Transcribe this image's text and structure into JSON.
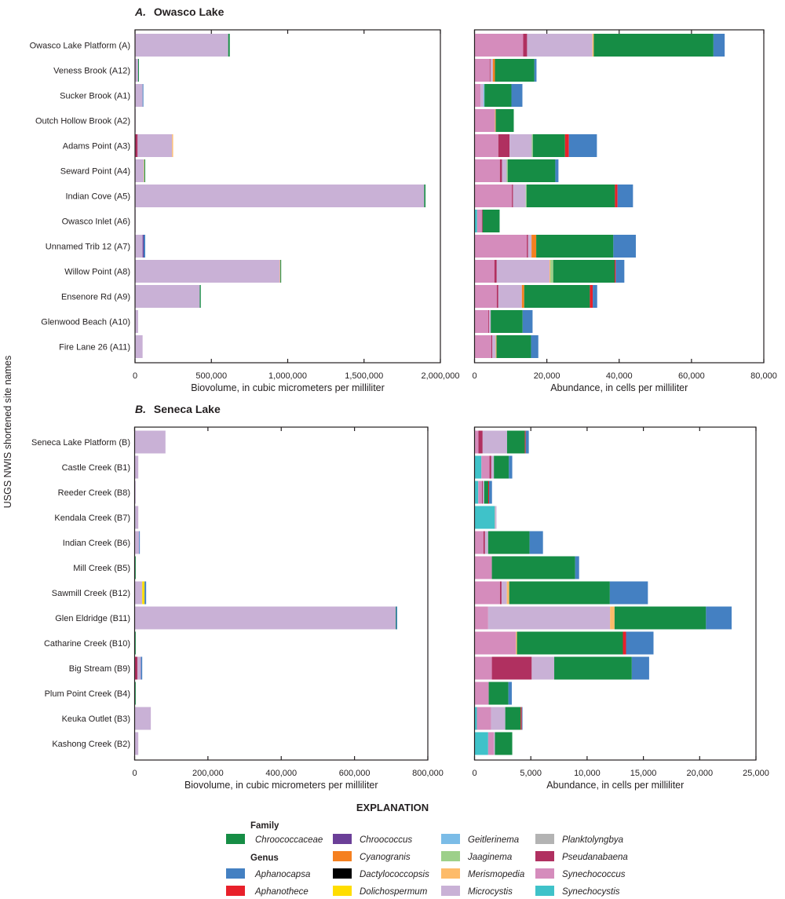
{
  "figure": {
    "y_axis_title": "USGS NWIS shortened site names",
    "panel_a": {
      "letter": "A.",
      "title": "Owasco Lake"
    },
    "panel_b": {
      "letter": "B.",
      "title": "Seneca Lake"
    }
  },
  "legend": {
    "title": "EXPLANATION",
    "family_heading": "Family",
    "genus_heading": "Genus",
    "items": [
      {
        "label": "Chroococcaceae",
        "color": "#168d45",
        "kind": "family"
      },
      {
        "label": "Aphanocapsa",
        "color": "#4480c2",
        "kind": "genus"
      },
      {
        "label": "Aphanothece",
        "color": "#e8202a",
        "kind": "genus"
      },
      {
        "label": "Chroococcus",
        "color": "#6b3f98",
        "kind": "genus"
      },
      {
        "label": "Cyanogranis",
        "color": "#f58020",
        "kind": "genus"
      },
      {
        "label": "Dactylococcopsis",
        "color": "#000000",
        "kind": "genus"
      },
      {
        "label": "Dolichospermum",
        "color": "#ffdd00",
        "kind": "genus"
      },
      {
        "label": "Geitlerinema",
        "color": "#7bbce7",
        "kind": "genus"
      },
      {
        "label": "Jaaginema",
        "color": "#9dd08a",
        "kind": "genus"
      },
      {
        "label": "Merismopedia",
        "color": "#fdbb6a",
        "kind": "genus"
      },
      {
        "label": "Microcystis",
        "color": "#c9b1d6",
        "kind": "genus"
      },
      {
        "label": "Planktolyngbya",
        "color": "#b3b3b3",
        "kind": "genus"
      },
      {
        "label": "Pseudanabaena",
        "color": "#b03060",
        "kind": "genus"
      },
      {
        "label": "Synechococcus",
        "color": "#d58cbc",
        "kind": "genus"
      },
      {
        "label": "Synechocystis",
        "color": "#3fc2c9",
        "kind": "genus"
      }
    ]
  },
  "chart_data": [
    {
      "type": "bar",
      "orientation": "horizontal",
      "stacked": true,
      "panel": "A",
      "xlabel": "Biovolume, in cubic micrometers per milliliter",
      "xlim": [
        0,
        2000000
      ],
      "xtick_labels": [
        "0",
        "500,000",
        "1,000,000",
        "1,500,000",
        "2,000,000"
      ],
      "xticks": [
        0,
        500000,
        1000000,
        1500000,
        2000000
      ],
      "categories": [
        "Owasco Lake Platform (A)",
        "Veness Brook (A12)",
        "Sucker Brook (A1)",
        "Outch Hollow Brook (A2)",
        "Adams Point (A3)",
        "Seward Point (A4)",
        "Indian Cove (A5)",
        "Owasco Inlet (A6)",
        "Unnamed Trib 12 (A7)",
        "Willow Point (A8)",
        "Ensenore Rd (A9)",
        "Glenwood Beach (A10)",
        "Fire Lane 26 (A11)"
      ],
      "values": [
        {
          "Synechococcus": 3400,
          "Microcystis": 606900,
          "Chroococcaceae": 10260
        },
        {
          "Microcystis": 20500,
          "Chroococcaceae": 5100
        },
        {
          "Microcystis": 49600,
          "Aphanocapsa": 5100
        },
        {
          "Microcystis": 2000
        },
        {
          "Pseudanabaena": 17100,
          "Microcystis": 225600,
          "Merismopedia": 6800
        },
        {
          "Microcystis": 59800,
          "Dolichospermum": 1700,
          "Chroococcaceae": 5100
        },
        {
          "Microcystis": 1894000,
          "Chroococcaceae": 8500
        },
        {
          "Microcystis": 1500
        },
        {
          "Microcystis": 49600,
          "Chroococcus": 6800,
          "Aphanocapsa": 10300
        },
        {
          "Microcystis": 948700,
          "Merismopedia": 3400,
          "Chroococcaceae": 5100
        },
        {
          "Microcystis": 423900,
          "Chroococcaceae": 6800
        },
        {
          "Microcystis": 20500
        },
        {
          "Microcystis": 49600
        }
      ]
    },
    {
      "type": "bar",
      "orientation": "horizontal",
      "stacked": true,
      "panel": "A",
      "xlabel": "Abundance, in cells per milliliter",
      "xlim": [
        0,
        80000
      ],
      "xtick_labels": [
        "0",
        "20,000",
        "40,000",
        "60,000",
        "80,000"
      ],
      "xticks": [
        0,
        20000,
        40000,
        60000,
        80000
      ],
      "categories": [
        "Owasco Lake Platform (A)",
        "Veness Brook (A12)",
        "Sucker Brook (A1)",
        "Outch Hollow Brook (A2)",
        "Adams Point (A3)",
        "Seward Point (A4)",
        "Indian Cove (A5)",
        "Owasco Inlet (A6)",
        "Unnamed Trib 12 (A7)",
        "Willow Point (A8)",
        "Ensenore Rd (A9)",
        "Glenwood Beach (A10)",
        "Fire Lane 26 (A11)"
      ],
      "values": [
        {
          "Synechococcus": 13450,
          "Pseudanabaena": 1080,
          "Microcystis": 18080,
          "Merismopedia": 360,
          "Chroococcaceae": 33100,
          "Aphanocapsa": 3110
        },
        {
          "Synechococcus": 4190,
          "Pseudanabaena": 220,
          "Microcystis": 650,
          "Cyanogranis": 580,
          "Chroococcaceae": 10920,
          "Aphanocapsa": 580
        },
        {
          "Synechococcus": 1660,
          "Microcystis": 800,
          "Geitlerinema": 290,
          "Chroococcaceae": 7450,
          "Aphanocapsa": 3040
        },
        {
          "Synechococcus": 5640,
          "Merismopedia": 220,
          "Chroococcaceae": 4990
        },
        {
          "Synechococcus": 6580,
          "Pseudanabaena": 3110,
          "Microcystis": 6150,
          "Jaaginema": 290,
          "Chroococcaceae": 8890,
          "Aphanothece": 1080,
          "Aphanocapsa": 7740
        },
        {
          "Synechococcus": 7010,
          "Pseudanabaena": 580,
          "Microcystis": 1300,
          "Jaaginema": 290,
          "Chroococcaceae": 13160,
          "Aphanocapsa": 870
        },
        {
          "Synechococcus": 10340,
          "Pseudanabaena": 290,
          "Microcystis": 3540,
          "Jaaginema": 220,
          "Chroococcaceae": 24440,
          "Aphanothece": 720,
          "Aphanocapsa": 4270
        },
        {
          "Synechocystis": 720,
          "Synechococcus": 1300,
          "Pseudanabaena": 220,
          "Chroococcaceae": 4700
        },
        {
          "Synechococcus": 14460,
          "Pseudanabaena": 360,
          "Microcystis": 940,
          "Cyanogranis": 1300,
          "Chroococcaceae": 21330,
          "Aphanocapsa": 6220
        },
        {
          "Synechococcus": 5490,
          "Pseudanabaena": 650,
          "Microcystis": 14600,
          "Jaaginema": 800,
          "Merismopedia": 220,
          "Chroococcaceae": 16990,
          "Aphanothece": 290,
          "Aphanocapsa": 2390
        },
        {
          "Synechococcus": 6150,
          "Pseudanabaena": 430,
          "Microcystis": 6510,
          "Cyanogranis": 650,
          "Chroococcaceae": 18150,
          "Aphanothece": 800,
          "Aphanocapsa": 1230
        },
        {
          "Synechococcus": 3830,
          "Pseudanabaena": 220,
          "Microcystis": 430,
          "Chroococcaceae": 8820,
          "Aphanocapsa": 2750
        },
        {
          "Synechococcus": 4630,
          "Pseudanabaena": 290,
          "Microcystis": 940,
          "Merismopedia": 220,
          "Chroococcaceae": 9540,
          "Aphanocapsa": 2020
        }
      ]
    },
    {
      "type": "bar",
      "orientation": "horizontal",
      "stacked": true,
      "panel": "B",
      "xlabel": "Biovolume, in cubic micrometers per milliliter",
      "xlim": [
        0,
        800000
      ],
      "xtick_labels": [
        "0",
        "200,000",
        "400,000",
        "600,000",
        "800,000"
      ],
      "xticks": [
        0,
        200000,
        400000,
        600000,
        800000
      ],
      "categories": [
        "Seneca Lake Platform (B)",
        "Castle Creek (B1)",
        "Reeder Creek (B8)",
        "Kendala Creek (B7)",
        "Indian Creek (B6)",
        "Mill Creek (B5)",
        "Sawmill Creek (B12)",
        "Glen Eldridge (B11)",
        "Catharine Creek (B10)",
        "Big Stream (B9)",
        "Plum Point Creek (B4)",
        "Keuka Outlet (B3)",
        "Kashong Creek (B2)"
      ],
      "values": [
        {
          "Microcystis": 84200
        },
        {
          "Microcystis": 10000
        },
        {
          "Microcystis": 2900
        },
        {
          "Synechocystis": 1400,
          "Microcystis": 8600
        },
        {
          "Microcystis": 12100,
          "Aphanocapsa": 2100
        },
        {
          "Chroococcaceae": 2900
        },
        {
          "Microcystis": 20700,
          "Dolichospermum": 6400,
          "Aphanocapsa": 4300
        },
        {
          "Microcystis": 712200,
          "Chroococcaceae": 1500,
          "Aphanocapsa": 2800
        },
        {
          "Chroococcaceae": 2900
        },
        {
          "Pseudanabaena": 7800,
          "Microcystis": 9300,
          "Aphanocapsa": 3600
        },
        {
          "Chroococcaceae": 2900
        },
        {
          "Microcystis": 44200
        },
        {
          "Microcystis": 10000
        }
      ]
    },
    {
      "type": "bar",
      "orientation": "horizontal",
      "stacked": true,
      "panel": "B",
      "xlabel": "Abundance, in cells per milliliter",
      "xlim": [
        0,
        25000
      ],
      "xtick_labels": [
        "0",
        "5,000",
        "10,000",
        "15,000",
        "20,000",
        "25,000"
      ],
      "xticks": [
        0,
        5000,
        10000,
        15000,
        20000,
        25000
      ],
      "categories": [
        "Seneca Lake Platform (B)",
        "Castle Creek (B1)",
        "Reeder Creek (B8)",
        "Kendala Creek (B7)",
        "Indian Creek (B6)",
        "Mill Creek (B5)",
        "Sawmill Creek (B12)",
        "Glen Eldridge (B11)",
        "Catharine Creek (B10)",
        "Big Stream (B9)",
        "Plum Point Creek (B4)",
        "Keuka Outlet (B3)",
        "Kashong Creek (B2)"
      ],
      "values": [
        {
          "Synechococcus": 350,
          "Pseudanabaena": 370,
          "Microcystis": 2170,
          "Chroococcaceae": 1580,
          "Aphanothece": 70,
          "Aphanocapsa": 280
        },
        {
          "Synechocystis": 610,
          "Synechococcus": 720,
          "Pseudanabaena": 160,
          "Microcystis": 230,
          "Chroococcaceae": 1330,
          "Aphanocapsa": 300
        },
        {
          "Synechocystis": 330,
          "Synechococcus": 330,
          "Pseudanabaena": 70,
          "Microcystis": 120,
          "Chroococcaceae": 370,
          "Aphanothece": 70,
          "Aphanocapsa": 260
        },
        {
          "Synechocystis": 1790,
          "Planktolyngbya": 70,
          "Microcystis": 90
        },
        {
          "Synechococcus": 790,
          "Pseudanabaena": 140,
          "Microcystis": 280,
          "Chroococcaceae": 3680,
          "Aphanocapsa": 1190
        },
        {
          "Synechococcus": 1540,
          "Chroococcaceae": 7400,
          "Aphanocapsa": 350
        },
        {
          "Synechococcus": 2260,
          "Pseudanabaena": 140,
          "Microcystis": 470,
          "Merismopedia": 210,
          "Chroococcaceae": 8940,
          "Aphanocapsa": 3380
        },
        {
          "Synechococcus": 1210,
          "Microcystis": 10830,
          "Merismopedia": 400,
          "Chroococcaceae": 8120,
          "Aphanocapsa": 2280
        },
        {
          "Synechococcus": 3680,
          "Merismopedia": 90,
          "Chroococcaceae": 9410,
          "Aphanothece": 280,
          "Aphanocapsa": 2440
        },
        {
          "Synechococcus": 1540,
          "Pseudanabaena": 3540,
          "Microcystis": 2000,
          "Chroococcaceae": 6890,
          "Aphanocapsa": 1540
        },
        {
          "Synechococcus": 1260,
          "Chroococcaceae": 1750,
          "Aphanocapsa": 300
        },
        {
          "Synechocystis": 210,
          "Synechococcus": 1260,
          "Microcystis": 1260,
          "Chroococcaceae": 1370,
          "Aphanothece": 90,
          "Aphanocapsa": 70
        },
        {
          "Synechocystis": 1210,
          "Synechococcus": 510,
          "Microcystis": 90,
          "Chroococcaceae": 1540
        }
      ]
    }
  ]
}
